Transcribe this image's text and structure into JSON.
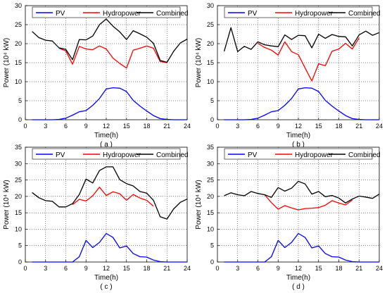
{
  "chart_data": [
    {
      "type": "line",
      "caption": "( a )",
      "xlabel": "Time(h)",
      "ylabel": "Power (10⁴ kW)",
      "xlim": [
        0,
        24
      ],
      "ylim": [
        0,
        30
      ],
      "xticks": [
        0,
        3,
        6,
        9,
        12,
        15,
        18,
        21,
        24
      ],
      "yticks": [
        0,
        5,
        10,
        15,
        20,
        25,
        30
      ],
      "grid": true,
      "legend_position": "top",
      "x": [
        1,
        2,
        3,
        4,
        5,
        6,
        7,
        8,
        9,
        10,
        11,
        12,
        13,
        14,
        15,
        16,
        17,
        18,
        19,
        20,
        21,
        22,
        23,
        24
      ],
      "series": [
        {
          "name": "PV",
          "color": "#0000ff",
          "values": [
            0,
            0,
            0,
            0,
            0.1,
            0.4,
            1.2,
            2.1,
            2.4,
            3.8,
            5.6,
            8.1,
            8.4,
            8.3,
            7.4,
            5.1,
            3.6,
            2.3,
            1.1,
            0.3,
            0.1,
            0,
            0,
            0
          ]
        },
        {
          "name": "Hydropower",
          "color": "#ff0000",
          "values": [
            null,
            null,
            null,
            null,
            18.8,
            18.1,
            14.6,
            19.3,
            18.6,
            18.4,
            19.4,
            18.6,
            16.2,
            14.8,
            13.6,
            18.3,
            18.8,
            19.4,
            18.8,
            15.3,
            15,
            null,
            null,
            null
          ]
        },
        {
          "name": "Combined",
          "color": "#000000",
          "values": [
            23.2,
            21.6,
            20.9,
            20.7,
            18.9,
            18.5,
            15.8,
            21.1,
            21,
            22,
            25,
            26.5,
            24.6,
            23.1,
            21.1,
            23.4,
            22.6,
            21.7,
            20.1,
            15.6,
            15.1,
            18,
            20.2,
            21.2
          ]
        }
      ]
    },
    {
      "type": "line",
      "caption": "( b )",
      "xlabel": "Time(h)",
      "ylabel": "Power (10⁴ kW)",
      "xlim": [
        0,
        24
      ],
      "ylim": [
        0,
        30
      ],
      "xticks": [
        0,
        3,
        6,
        9,
        12,
        15,
        18,
        21,
        24
      ],
      "yticks": [
        0,
        5,
        10,
        15,
        20,
        25,
        30
      ],
      "grid": true,
      "legend_position": "top",
      "x": [
        1,
        2,
        3,
        4,
        5,
        6,
        7,
        8,
        9,
        10,
        11,
        12,
        13,
        14,
        15,
        16,
        17,
        18,
        19,
        20,
        21,
        22,
        23,
        24
      ],
      "series": [
        {
          "name": "PV",
          "color": "#0000ff",
          "values": [
            0,
            0,
            0,
            0,
            0.1,
            0.4,
            1.2,
            2.1,
            2.4,
            3.8,
            5.6,
            8.1,
            8.4,
            8.3,
            7.4,
            5.1,
            3.6,
            2.3,
            1.1,
            0.3,
            0.1,
            0,
            0,
            0
          ]
        },
        {
          "name": "Hydropower",
          "color": "#ff0000",
          "values": [
            null,
            null,
            null,
            null,
            null,
            20.1,
            19,
            18.3,
            17,
            20.5,
            17.9,
            17.1,
            13.6,
            10.2,
            14.7,
            14.2,
            18,
            18.6,
            20.1,
            18.6,
            21.5,
            null,
            null,
            null
          ]
        },
        {
          "name": "Combined",
          "color": "#000000",
          "values": [
            18,
            24.2,
            17.9,
            19.3,
            18.5,
            20.5,
            19.7,
            19.4,
            19.2,
            22.3,
            21.1,
            22.2,
            22.1,
            18.9,
            22.5,
            21.4,
            22.4,
            21.9,
            21.8,
            19.4,
            22.3,
            23.3,
            22.2,
            22.9
          ]
        }
      ]
    },
    {
      "type": "line",
      "caption": "( c )",
      "xlabel": "Time(h)",
      "ylabel": "Power (10⁴ kW)",
      "xlim": [
        0,
        24
      ],
      "ylim": [
        0,
        35
      ],
      "xticks": [
        0,
        3,
        6,
        9,
        12,
        15,
        18,
        21,
        24
      ],
      "yticks": [
        0,
        5,
        10,
        15,
        20,
        25,
        30,
        35
      ],
      "grid": true,
      "legend_position": "top",
      "x": [
        1,
        2,
        3,
        4,
        5,
        6,
        7,
        8,
        9,
        10,
        11,
        12,
        13,
        14,
        15,
        16,
        17,
        18,
        19,
        20,
        21,
        22,
        23,
        24
      ],
      "series": [
        {
          "name": "PV",
          "color": "#0000ff",
          "values": [
            0,
            0,
            0,
            0,
            0,
            0,
            0,
            1.6,
            6.6,
            4.4,
            6,
            8.7,
            7.5,
            4.3,
            4.9,
            2.6,
            1.6,
            1.5,
            0.6,
            0.1,
            0,
            0,
            0,
            0
          ]
        },
        {
          "name": "Hydropower",
          "color": "#ff0000",
          "values": [
            null,
            null,
            null,
            null,
            null,
            null,
            17.5,
            19.1,
            18.6,
            20.2,
            22.8,
            20.3,
            21.4,
            20.8,
            18.8,
            20.6,
            19.5,
            18.8,
            17,
            null,
            null,
            null,
            null,
            null
          ]
        },
        {
          "name": "Combined",
          "color": "#000000",
          "values": [
            21.2,
            19.6,
            18.7,
            18.5,
            16.8,
            16.8,
            17.8,
            20.6,
            25.3,
            24.1,
            27.9,
            29,
            29,
            25.1,
            23.9,
            23.2,
            21.5,
            21,
            18.8,
            13.8,
            13.1,
            16.2,
            18.2,
            19.2
          ]
        }
      ]
    },
    {
      "type": "line",
      "caption": "( d )",
      "xlabel": "Time(h)",
      "ylabel": "Power (10⁴ kW)",
      "xlim": [
        0,
        24
      ],
      "ylim": [
        0,
        35
      ],
      "xticks": [
        0,
        3,
        6,
        9,
        12,
        15,
        18,
        21,
        24
      ],
      "yticks": [
        0,
        5,
        10,
        15,
        20,
        25,
        30,
        35
      ],
      "grid": true,
      "legend_position": "top",
      "x": [
        1,
        2,
        3,
        4,
        5,
        6,
        7,
        8,
        9,
        10,
        11,
        12,
        13,
        14,
        15,
        16,
        17,
        18,
        19,
        20,
        21,
        22,
        23,
        24
      ],
      "series": [
        {
          "name": "PV",
          "color": "#0000ff",
          "values": [
            0,
            0,
            0,
            0,
            0,
            0,
            0,
            1.6,
            6.6,
            4.4,
            6,
            8.7,
            7.5,
            4.3,
            4.9,
            2.6,
            1.6,
            1.5,
            0.6,
            0.1,
            0,
            0,
            0,
            0
          ]
        },
        {
          "name": "Hydropower",
          "color": "#ff0000",
          "values": [
            null,
            null,
            null,
            null,
            null,
            null,
            20.5,
            18.1,
            16.1,
            17.2,
            16.5,
            15.9,
            16.3,
            16.4,
            16.6,
            17.3,
            18.7,
            18,
            17.4,
            18.9,
            null,
            null,
            null,
            null
          ]
        },
        {
          "name": "Combined",
          "color": "#000000",
          "values": [
            20.2,
            21.1,
            20.5,
            20.2,
            21.5,
            20.9,
            20.5,
            19.7,
            22.7,
            21.6,
            22.5,
            24.6,
            23.8,
            20.7,
            21.5,
            19.9,
            20.3,
            19.5,
            18,
            19.2,
            20.1,
            19.8,
            19.4,
            20.7
          ]
        }
      ]
    }
  ]
}
